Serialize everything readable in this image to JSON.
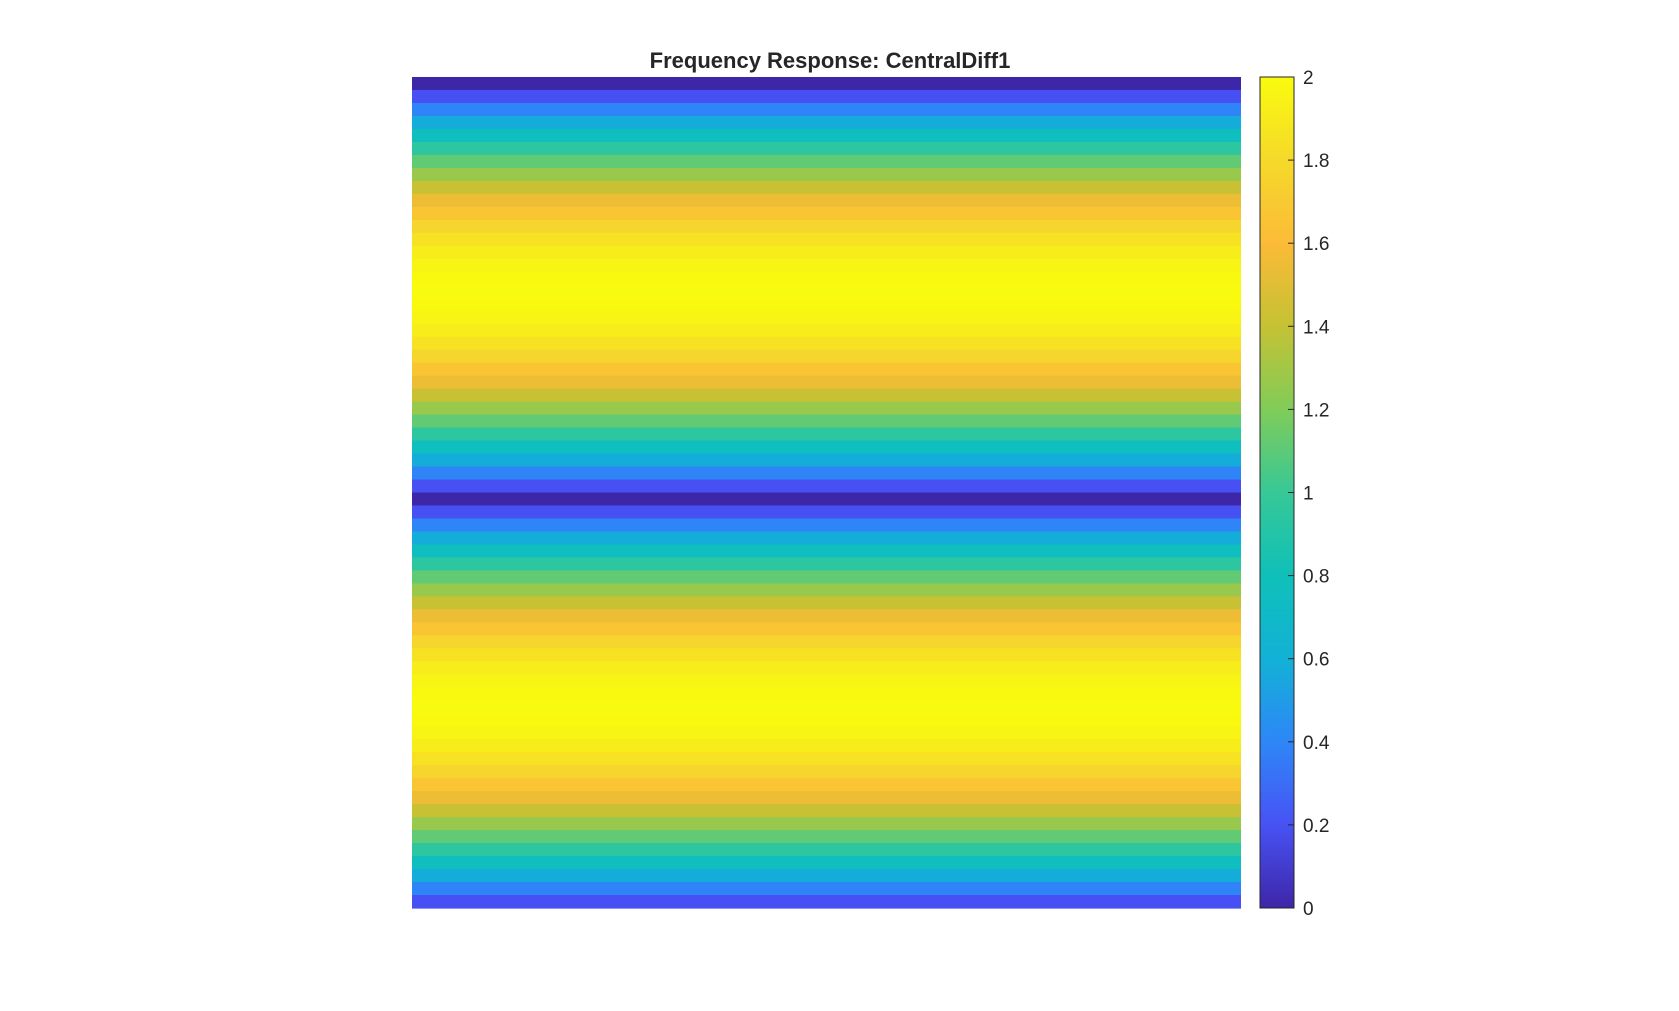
{
  "chart_data": {
    "type": "heatmap",
    "title": "Frequency Response: CentralDiff1",
    "xlabel": "",
    "ylabel": "",
    "colormap": "parula",
    "clim": [
      0,
      2
    ],
    "colorbar": {
      "ticks": [
        0,
        0.2,
        0.4,
        0.6,
        0.8,
        1,
        1.2,
        1.4,
        1.6,
        1.8,
        2
      ],
      "tick_labels": [
        "0",
        "0.2",
        "0.4",
        "0.6",
        "0.8",
        "1",
        "1.2",
        "1.4",
        "1.6",
        "1.8",
        "2"
      ]
    },
    "grid": false,
    "axes_visible": false,
    "rows": 64,
    "row_formula": "value(i) = |2*sin(2*pi*i/rows)|, i = 0..rows-1 from top; constant across columns"
  }
}
